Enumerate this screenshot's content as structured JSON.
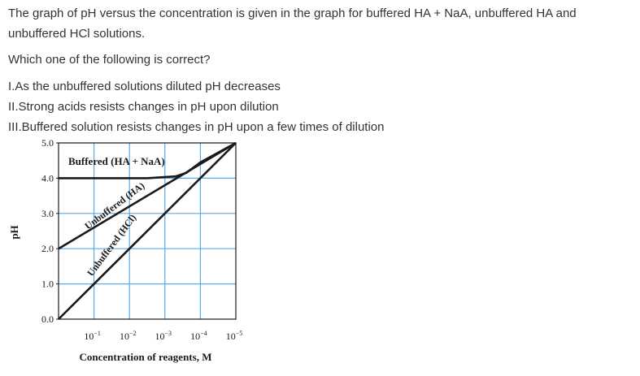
{
  "question": {
    "intro": "The graph of pH versus the concentration is given in the graph for buffered  HA + NaA, unbuffered HA and unbuffered HCl solutions.",
    "ask": "Which one of the following is correct?",
    "options": [
      "I.As the unbuffered solutions diluted pH decreases",
      "II.Strong acids resists changes in pH upon dilution",
      "III.Buffered solution resists changes in pH upon a few times of dilution"
    ]
  },
  "chart_data": {
    "type": "line",
    "title": "",
    "xlabel": "Concentration of reagents, M",
    "ylabel": "pH",
    "ylim": [
      0,
      5
    ],
    "y_ticks": [
      "5.0",
      "4.0",
      "3.0",
      "2.0",
      "1.0",
      "0.0"
    ],
    "x_ticks": [
      {
        "base": "10",
        "exp": "−1"
      },
      {
        "base": "10",
        "exp": "−2"
      },
      {
        "base": "10",
        "exp": "−3"
      },
      {
        "base": "10",
        "exp": "−4"
      },
      {
        "base": "10",
        "exp": "−5"
      }
    ],
    "x_note": "x axis runs from high concentration (left) to low concentration (right); values are -log10 of concentration",
    "grid": true,
    "series": [
      {
        "name": "Buffered (HA + NaA)",
        "points": [
          [
            0,
            4.0
          ],
          [
            2.5,
            4.0
          ],
          [
            3.3,
            4.05
          ],
          [
            3.6,
            4.15
          ],
          [
            4.0,
            4.45
          ],
          [
            5.0,
            5.0
          ]
        ]
      },
      {
        "name": "Unbuffered (HA)",
        "points": [
          [
            0,
            2.0
          ],
          [
            5.0,
            5.0
          ]
        ]
      },
      {
        "name": "Unbuffered (HCl)",
        "points": [
          [
            0,
            0.0
          ],
          [
            5.0,
            5.0
          ]
        ]
      }
    ],
    "colors": {
      "line": "#1a1a1a",
      "grid": "#5aa9e6",
      "frame": "#1a1a1a"
    }
  }
}
